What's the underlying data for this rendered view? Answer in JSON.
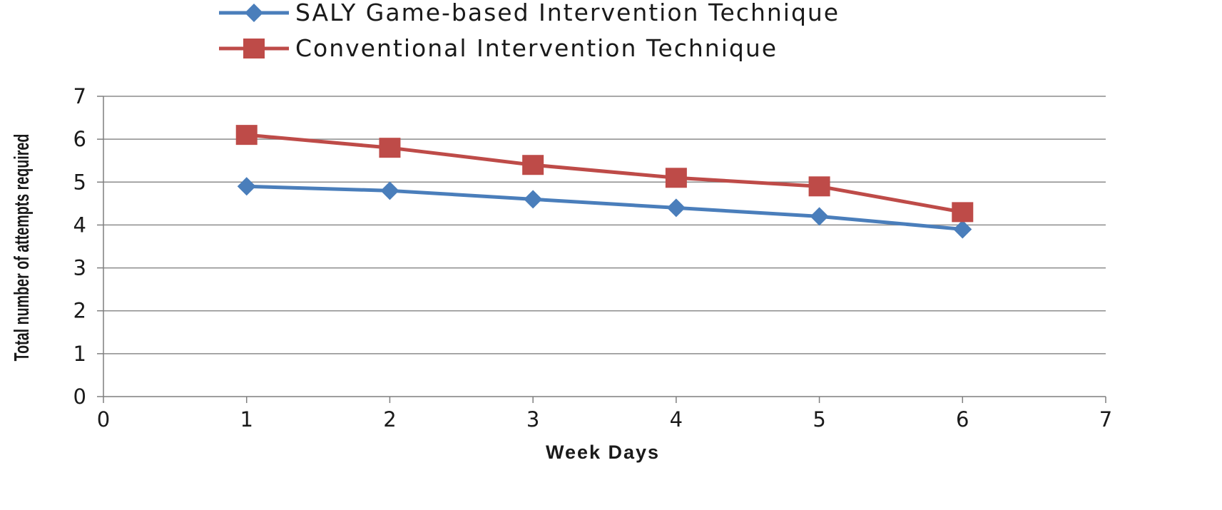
{
  "chart_data": {
    "type": "line",
    "title": "",
    "xlabel": "Week Days",
    "ylabel": "Total number of attempts required",
    "xlim": [
      0,
      7
    ],
    "ylim": [
      0,
      7
    ],
    "x_ticks": [
      0,
      1,
      2,
      3,
      4,
      5,
      6,
      7
    ],
    "y_ticks": [
      0,
      1,
      2,
      3,
      4,
      5,
      6,
      7
    ],
    "grid": "horizontal",
    "legend_position": "top",
    "series": [
      {
        "name": "SALY Game-based Intervention Technique",
        "marker": "diamond",
        "color": "#4a7ebb",
        "x": [
          1,
          2,
          3,
          4,
          5,
          6
        ],
        "y": [
          4.9,
          4.8,
          4.6,
          4.4,
          4.2,
          3.9
        ]
      },
      {
        "name": "Conventional Intervention Technique",
        "marker": "square",
        "color": "#be4b48",
        "x": [
          1,
          2,
          3,
          4,
          5,
          6
        ],
        "y": [
          6.1,
          5.8,
          5.4,
          5.1,
          4.9,
          4.3
        ]
      }
    ]
  },
  "colors": {
    "gridline": "#8c8c8c",
    "axis": "#7f7f7f",
    "text": "#1a1a1a"
  }
}
